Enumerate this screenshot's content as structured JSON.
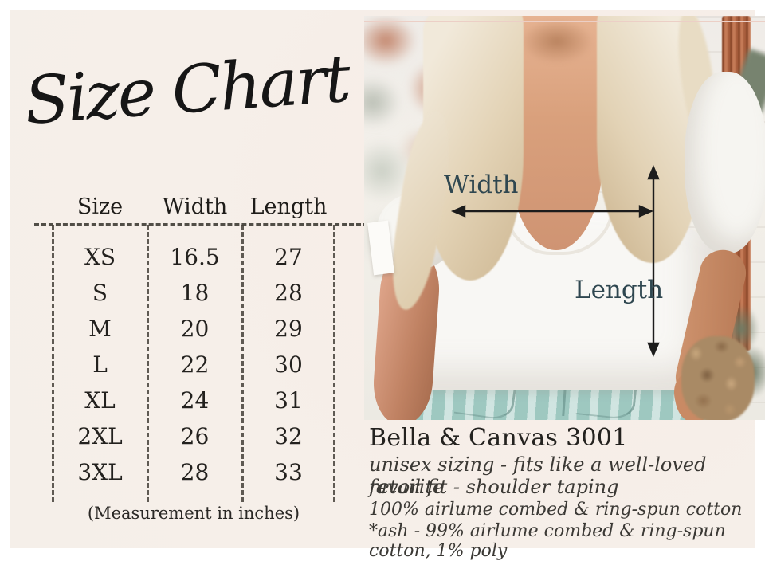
{
  "title": "Size Chart",
  "size_table": {
    "columns": [
      "Size",
      "Width",
      "Length"
    ],
    "rows": [
      [
        "XS",
        "16.5",
        "27"
      ],
      [
        "S",
        "18",
        "28"
      ],
      [
        "M",
        "20",
        "29"
      ],
      [
        "L",
        "22",
        "30"
      ],
      [
        "XL",
        "24",
        "31"
      ],
      [
        "2XL",
        "26",
        "32"
      ],
      [
        "3XL",
        "28",
        "33"
      ]
    ],
    "note": "(Measurement in inches)"
  },
  "photo_annotations": {
    "width_label": "Width",
    "length_label": "Length"
  },
  "product": {
    "name": "Bella & Canvas 3001",
    "tagline_line1": "unisex sizing - fits like a well-loved favorite",
    "tagline_line2": "retail fit - shoulder taping",
    "material_line1": "100% airlume combed & ring-spun cotton",
    "material_line2": "*ash - 99% airlume combed & ring-spun cotton, 1% poly"
  },
  "colors": {
    "panel_bg": "#f6efe9",
    "annotation_label": "#2f4750",
    "arrow": "#1c1c1c",
    "table_ink": "#23211e",
    "photo_topline_pink": "#eccfc6",
    "jeans": "#a9cfc8"
  }
}
